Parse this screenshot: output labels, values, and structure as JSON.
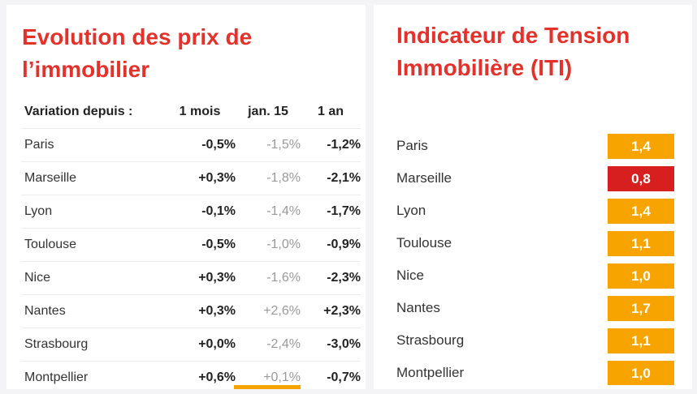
{
  "colors": {
    "title": "#e4322b",
    "badge_orange": "#f7a400",
    "badge_red": "#d81f1f"
  },
  "left": {
    "title_line1": "Evolution des prix de",
    "title_line2": "l’immobilier",
    "header": {
      "city": "Variation depuis :",
      "m1": "1 mois",
      "jan": "jan. 15",
      "y1": "1 an"
    },
    "rows": [
      {
        "city": "Paris",
        "m1": "-0,5%",
        "jan": "-1,5%",
        "y1": "-1,2%"
      },
      {
        "city": "Marseille",
        "m1": "+0,3%",
        "jan": "-1,8%",
        "y1": "-2,1%"
      },
      {
        "city": "Lyon",
        "m1": "-0,1%",
        "jan": "-1,4%",
        "y1": "-1,7%"
      },
      {
        "city": "Toulouse",
        "m1": "-0,5%",
        "jan": "-1,0%",
        "y1": "-0,9%"
      },
      {
        "city": "Nice",
        "m1": "+0,3%",
        "jan": "-1,6%",
        "y1": "-2,3%"
      },
      {
        "city": "Nantes",
        "m1": "+0,3%",
        "jan": "+2,6%",
        "y1": "+2,3%"
      },
      {
        "city": "Strasbourg",
        "m1": "+0,0%",
        "jan": "-2,4%",
        "y1": "-3,0%"
      },
      {
        "city": "Montpellier",
        "m1": "+0,6%",
        "jan": "+0,1%",
        "y1": "-0,7%"
      }
    ]
  },
  "right": {
    "title_line1": "Indicateur de Tension",
    "title_line2": "Immobilière (ITI)",
    "rows": [
      {
        "city": "Paris",
        "iti": "1,4",
        "level": "orange"
      },
      {
        "city": "Marseille",
        "iti": "0,8",
        "level": "red"
      },
      {
        "city": "Lyon",
        "iti": "1,4",
        "level": "orange"
      },
      {
        "city": "Toulouse",
        "iti": "1,1",
        "level": "orange"
      },
      {
        "city": "Nice",
        "iti": "1,0",
        "level": "orange"
      },
      {
        "city": "Nantes",
        "iti": "1,7",
        "level": "orange"
      },
      {
        "city": "Strasbourg",
        "iti": "1,1",
        "level": "orange"
      },
      {
        "city": "Montpellier",
        "iti": "1,0",
        "level": "orange"
      }
    ]
  }
}
